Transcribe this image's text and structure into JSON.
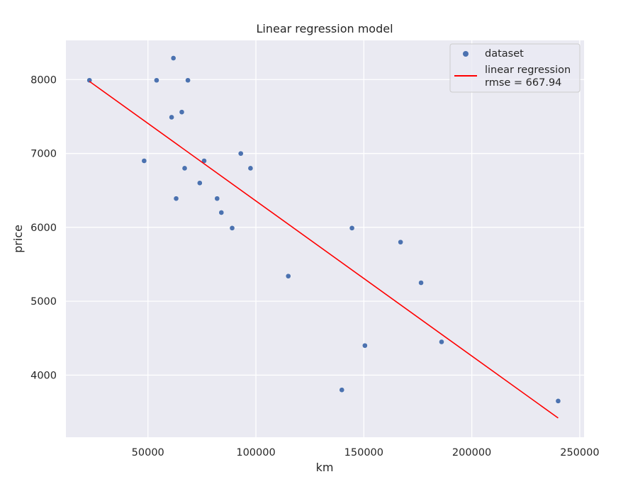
{
  "chart_data": {
    "type": "scatter",
    "title": "Linear regression model",
    "xlabel": "km",
    "ylabel": "price",
    "xlim": [
      12000,
      252000
    ],
    "ylim": [
      3160,
      8530
    ],
    "x_ticks": [
      50000,
      100000,
      150000,
      200000,
      250000
    ],
    "y_ticks": [
      4000,
      5000,
      6000,
      7000,
      8000
    ],
    "grid": true,
    "background": "#eaeaf2",
    "legend_position": "top-right",
    "series": [
      {
        "name": "dataset",
        "kind": "scatter",
        "color": "#4c72b0",
        "points": [
          [
            22900,
            7990
          ],
          [
            48235,
            6900
          ],
          [
            54000,
            7990
          ],
          [
            60949,
            7490
          ],
          [
            61789,
            8290
          ],
          [
            63060,
            6390
          ],
          [
            65674,
            7560
          ],
          [
            67000,
            6800
          ],
          [
            68500,
            7990
          ],
          [
            74000,
            6600
          ],
          [
            76025,
            6900
          ],
          [
            82029,
            6390
          ],
          [
            84000,
            6200
          ],
          [
            89000,
            5990
          ],
          [
            93000,
            6999
          ],
          [
            97500,
            6800
          ],
          [
            115000,
            5340
          ],
          [
            139800,
            3800
          ],
          [
            144500,
            5990
          ],
          [
            150500,
            4400
          ],
          [
            167000,
            5800
          ],
          [
            176500,
            5250
          ],
          [
            186000,
            4450
          ],
          [
            240000,
            3650
          ]
        ]
      },
      {
        "name": "linear regression",
        "kind": "line",
        "color": "#ff0000",
        "points": [
          [
            22900,
            7975
          ],
          [
            240000,
            3420
          ]
        ]
      }
    ],
    "legend": {
      "entries": [
        "dataset",
        "linear regression"
      ],
      "extra_text": "rmse = 667.94"
    }
  }
}
